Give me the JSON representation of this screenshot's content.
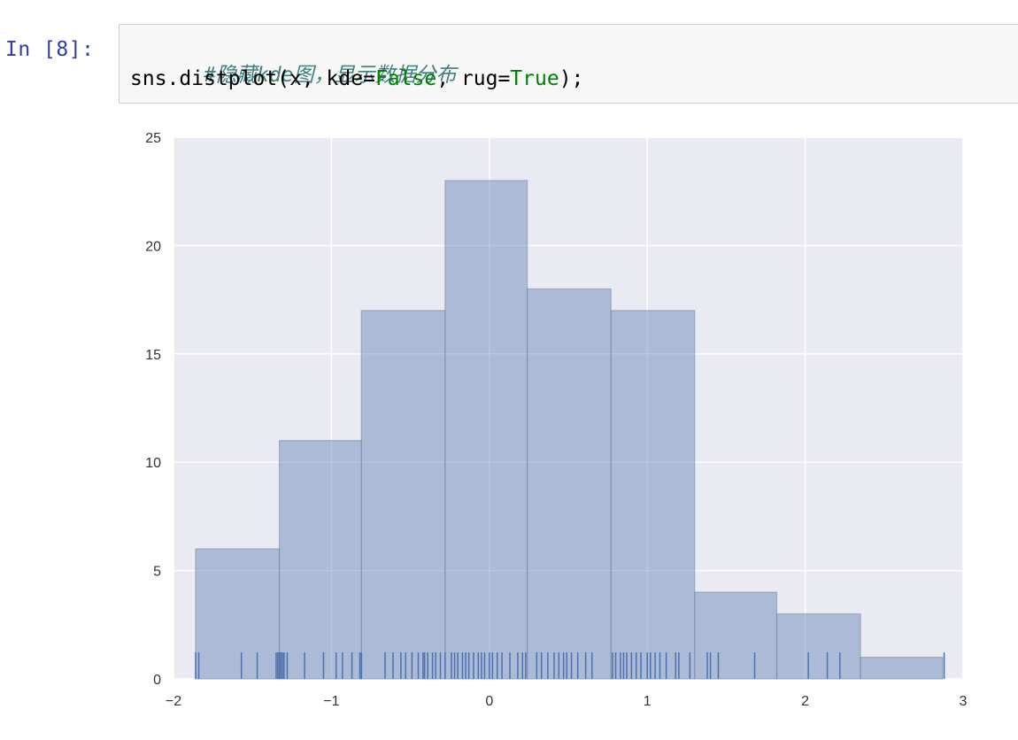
{
  "cell": {
    "prompt": "In [8]:",
    "comment": "#隐藏kde图，显示数据分布",
    "code": {
      "before_false": "sns.distplot(x, kde=",
      "false_kw": "False",
      "middle": ", rug=",
      "true_kw": "True",
      "after": ");"
    }
  },
  "colors": {
    "plot_bg": "#EAEAF2",
    "grid": "#FFFFFF",
    "bar_fill": "#4C72B0",
    "bar_alpha": 0.4,
    "rug": "#4C72B0",
    "prompt": "#303F9F",
    "comment": "#408080",
    "keyword": "#008000"
  },
  "chart_data": {
    "type": "bar",
    "title": "",
    "xlabel": "",
    "ylabel": "",
    "xlim": [
      -2,
      3
    ],
    "ylim": [
      0,
      25
    ],
    "xticks": [
      -2,
      -1,
      0,
      1,
      2,
      3
    ],
    "xtick_labels": [
      "−2",
      "−1",
      "0",
      "1",
      "2",
      "3"
    ],
    "yticks": [
      0,
      5,
      10,
      15,
      20,
      25
    ],
    "ytick_labels": [
      "0",
      "5",
      "10",
      "15",
      "20",
      "25"
    ],
    "grid": true,
    "bins": [
      {
        "start": -1.86,
        "end": -1.33,
        "count": 6
      },
      {
        "start": -1.33,
        "end": -0.81,
        "count": 11
      },
      {
        "start": -0.81,
        "end": -0.28,
        "count": 17
      },
      {
        "start": -0.28,
        "end": 0.24,
        "count": 23
      },
      {
        "start": 0.24,
        "end": 0.77,
        "count": 18
      },
      {
        "start": 0.77,
        "end": 1.3,
        "count": 17
      },
      {
        "start": 1.3,
        "end": 1.82,
        "count": 4
      },
      {
        "start": 1.82,
        "end": 2.35,
        "count": 3
      },
      {
        "start": 2.35,
        "end": 2.87,
        "count": 1
      }
    ],
    "rug": [
      -1.86,
      -1.84,
      -1.57,
      -1.47,
      -1.35,
      -1.34,
      -1.33,
      -1.32,
      -1.31,
      -1.3,
      -1.28,
      -1.17,
      -1.05,
      -0.97,
      -0.93,
      -0.87,
      -0.82,
      -0.81,
      -0.66,
      -0.61,
      -0.56,
      -0.53,
      -0.49,
      -0.45,
      -0.42,
      -0.41,
      -0.39,
      -0.36,
      -0.34,
      -0.31,
      -0.28,
      -0.24,
      -0.22,
      -0.2,
      -0.17,
      -0.15,
      -0.13,
      -0.1,
      -0.07,
      -0.05,
      -0.03,
      0.0,
      0.02,
      0.05,
      0.08,
      0.13,
      0.18,
      0.21,
      0.23,
      0.3,
      0.33,
      0.37,
      0.41,
      0.44,
      0.47,
      0.49,
      0.52,
      0.56,
      0.61,
      0.65,
      0.78,
      0.8,
      0.83,
      0.85,
      0.87,
      0.9,
      0.93,
      0.96,
      1.0,
      1.02,
      1.05,
      1.08,
      1.12,
      1.18,
      1.2,
      1.27,
      1.38,
      1.4,
      1.45,
      1.68,
      2.02,
      2.14,
      2.22,
      2.88
    ]
  }
}
